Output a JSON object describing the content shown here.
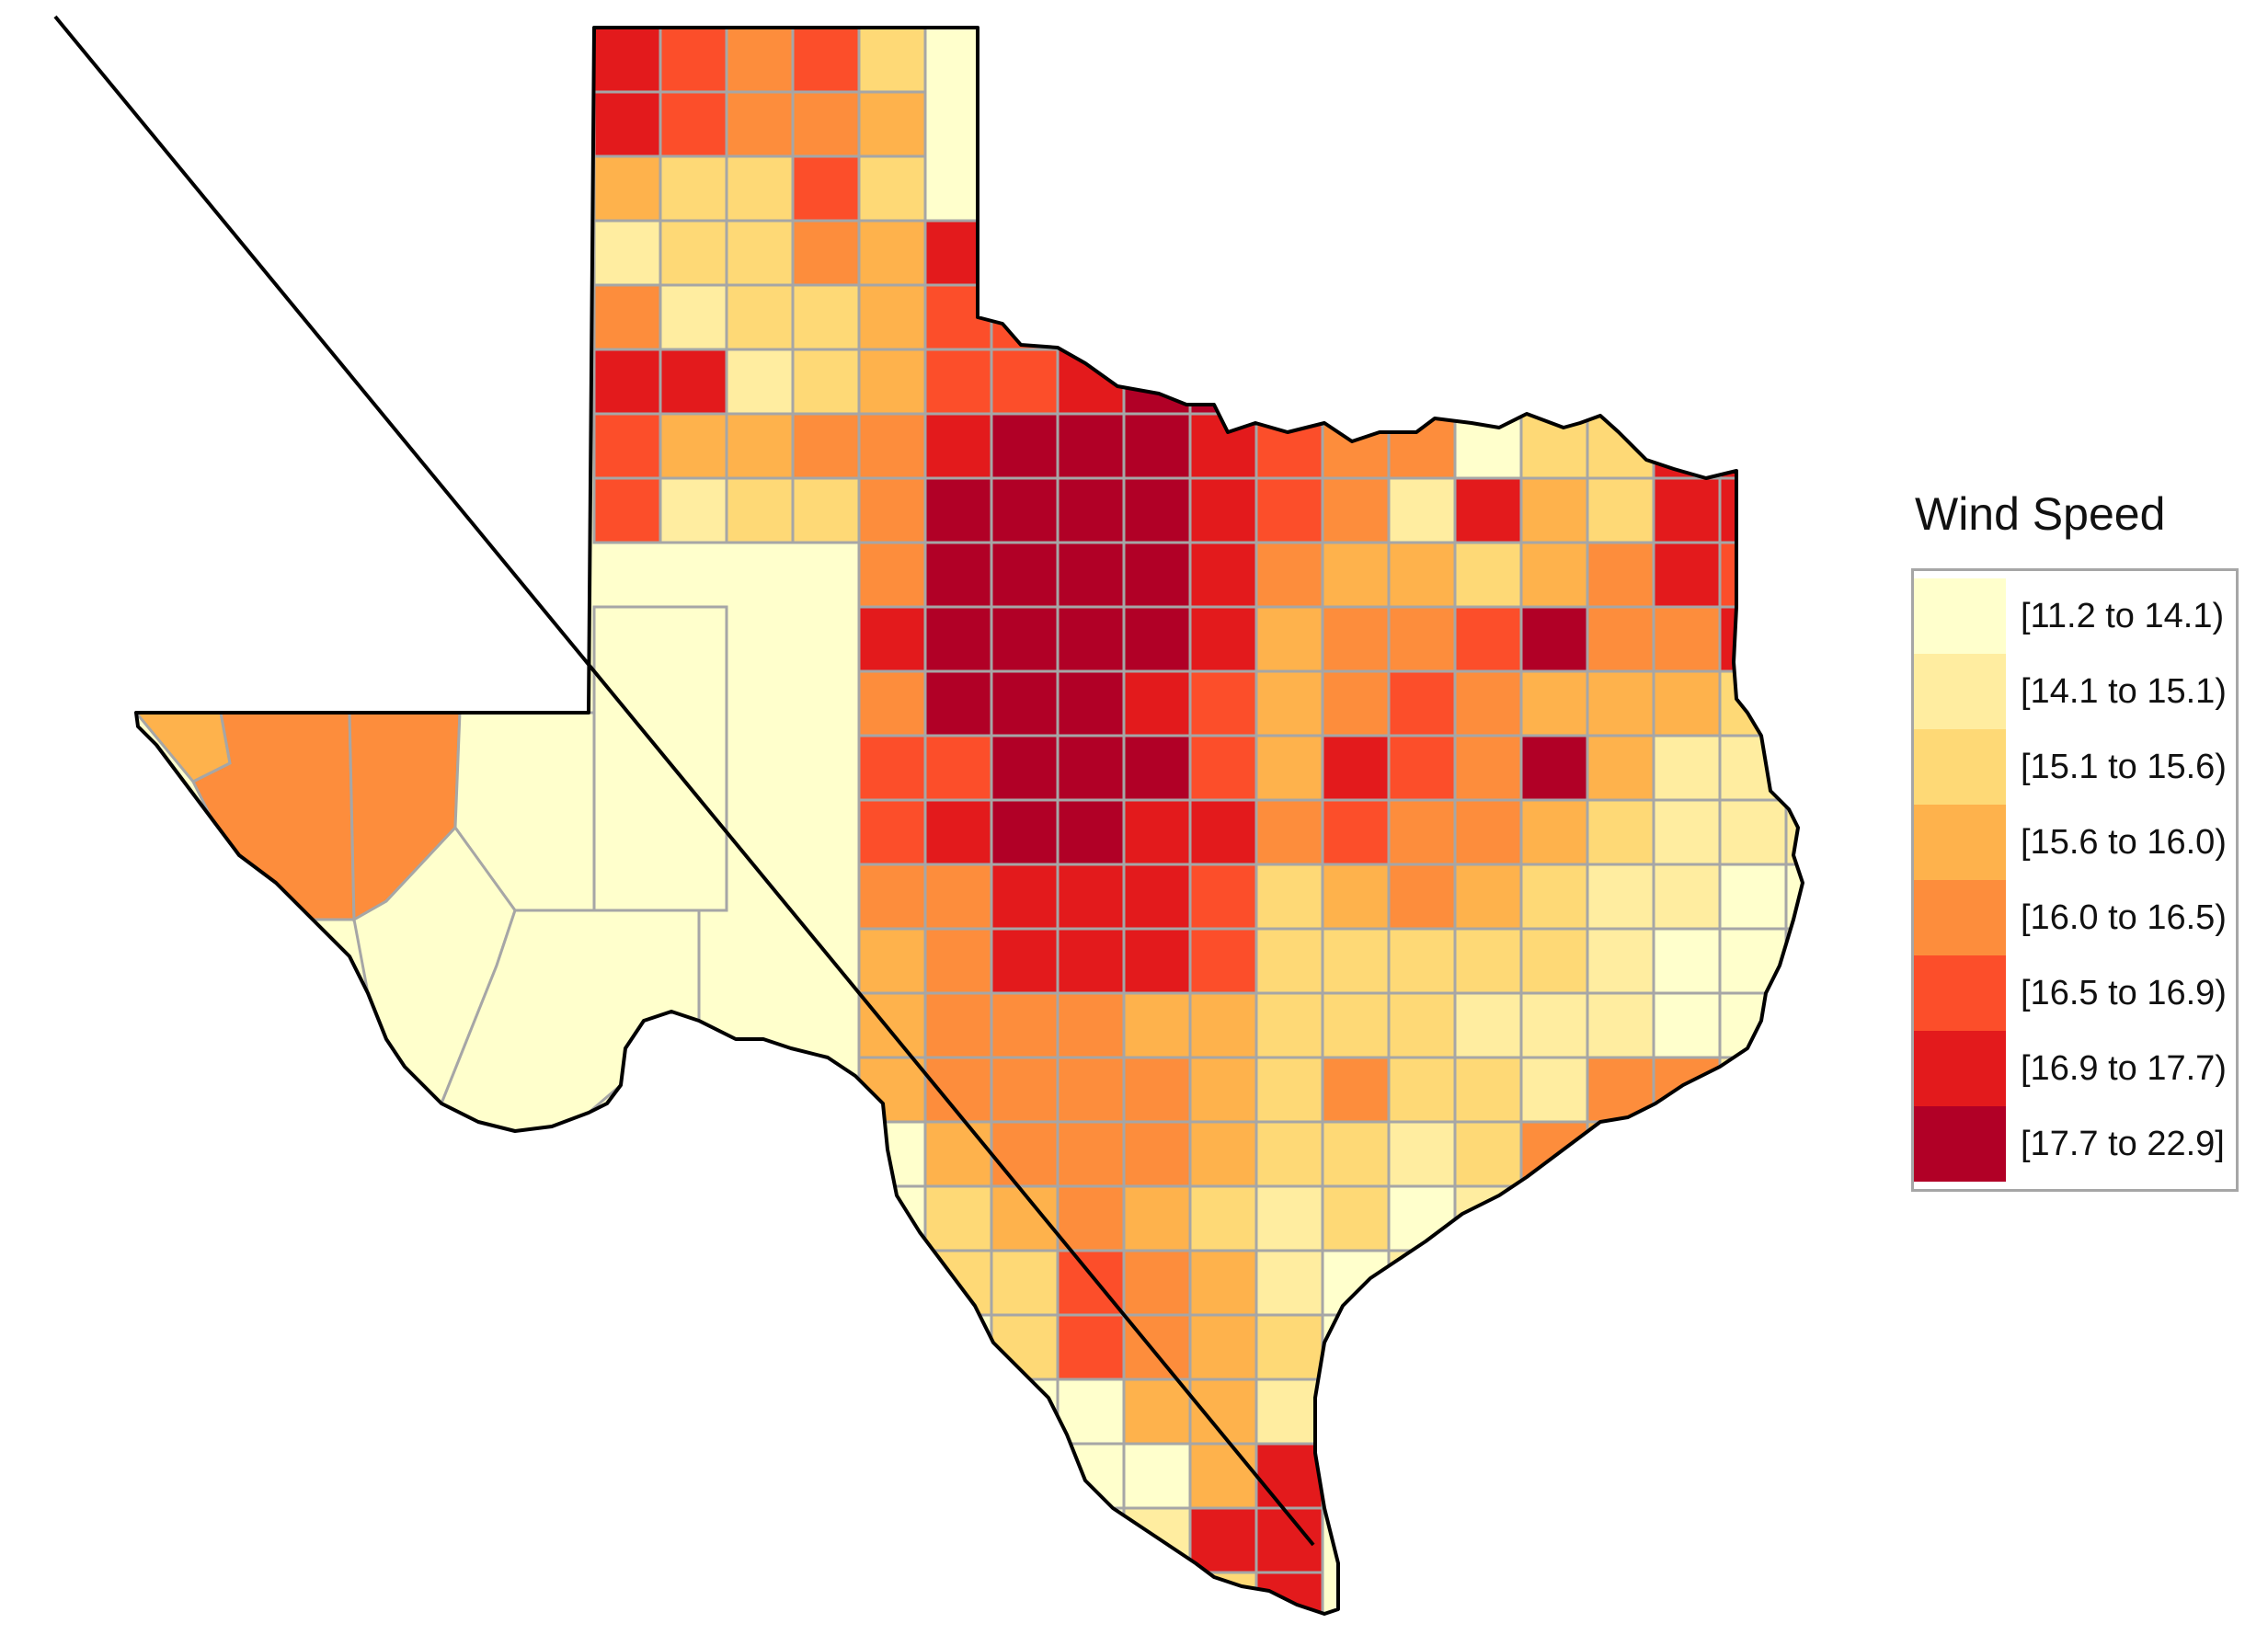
{
  "legend": {
    "title": "Wind Speed",
    "classes": [
      {
        "label": "[11.2 to 14.1)",
        "color": "#ffffcc"
      },
      {
        "label": "[14.1 to 15.1)",
        "color": "#ffeda0"
      },
      {
        "label": "[15.1 to 15.6)",
        "color": "#fed976"
      },
      {
        "label": "[15.6 to 16.0)",
        "color": "#feb24c"
      },
      {
        "label": "[16.0 to 16.5)",
        "color": "#fd8d3c"
      },
      {
        "label": "[16.5 to 16.9)",
        "color": "#fc4e2a"
      },
      {
        "label": "[16.9 to 17.7)",
        "color": "#e31a1c"
      },
      {
        "label": "[17.7 to 22.9]",
        "color": "#b10026"
      }
    ]
  },
  "map": {
    "region": "Texas",
    "unit": "county",
    "variable": "Wind Speed",
    "border_color": "#a6a6a6",
    "outline_color": "#000000"
  }
}
